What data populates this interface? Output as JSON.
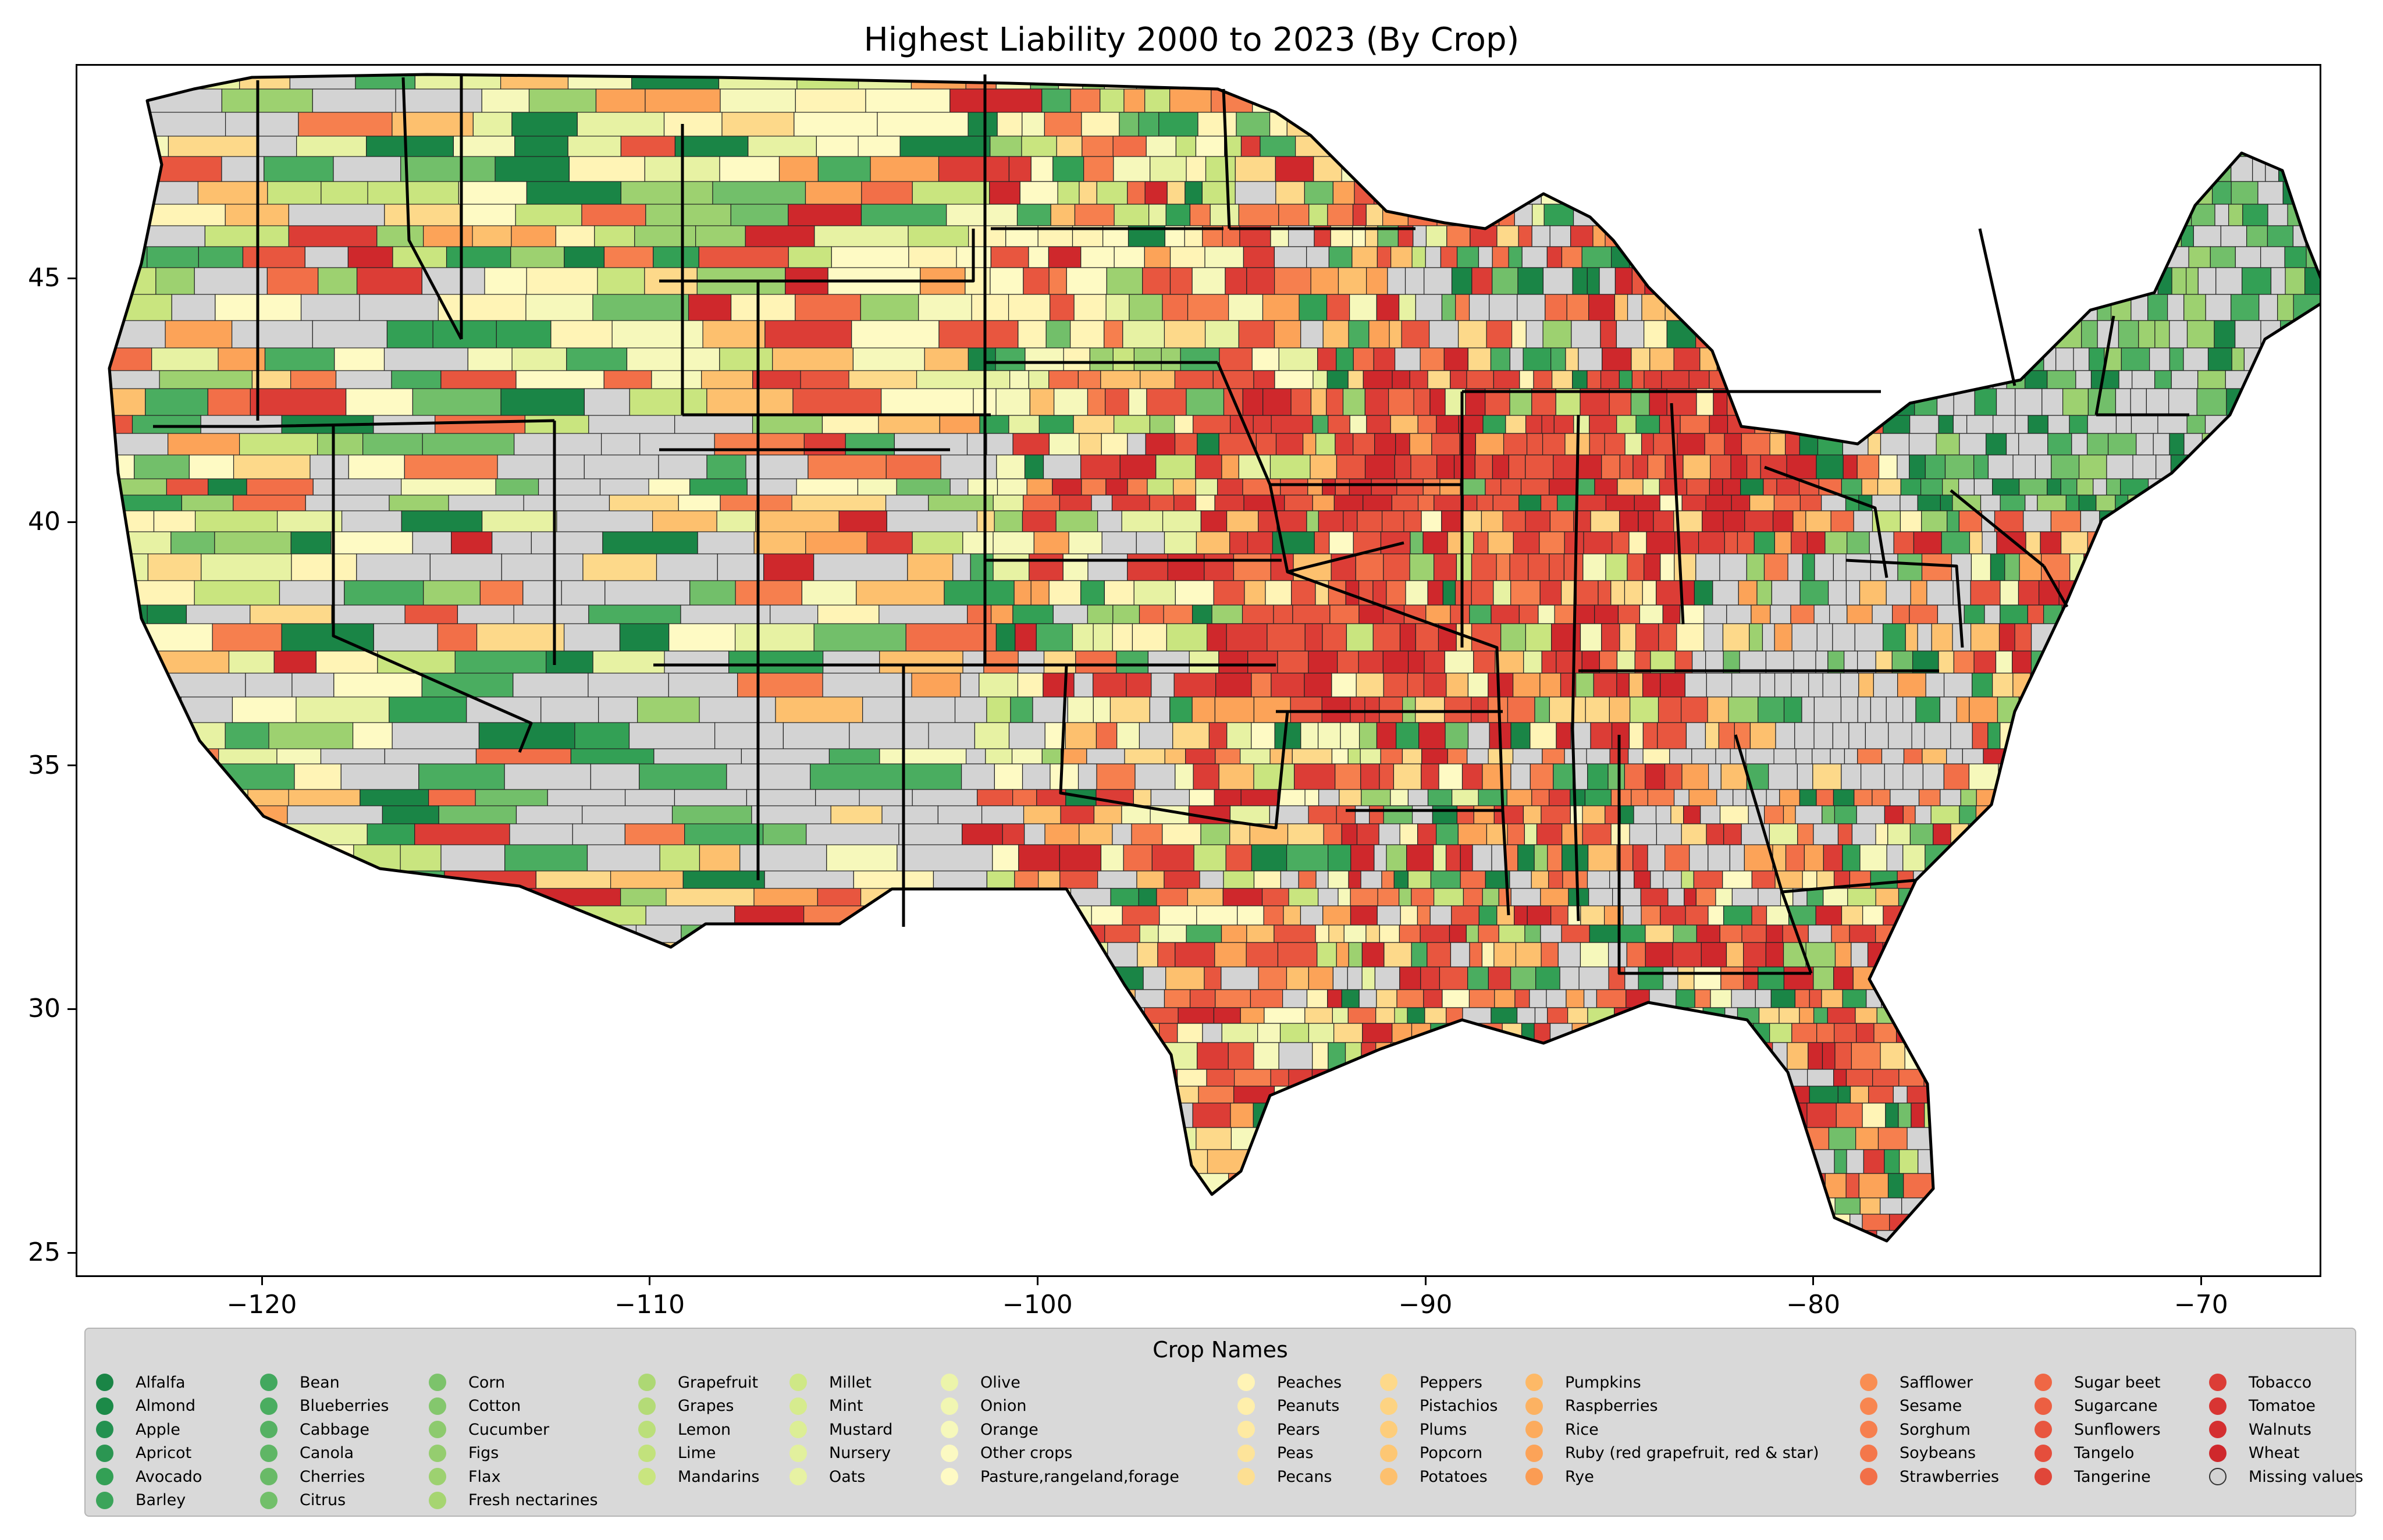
{
  "title": "Highest Liability 2000 to 2023 (By Crop)",
  "axes": {
    "x_ticks": [
      "−120",
      "−110",
      "−100",
      "−90",
      "−80",
      "−70"
    ],
    "x_values": [
      -120,
      -110,
      -100,
      -90,
      -80,
      -70
    ],
    "y_ticks": [
      "45",
      "40",
      "35",
      "30",
      "25"
    ],
    "y_values": [
      45,
      40,
      35,
      30,
      25
    ],
    "xlim": [
      -124.8,
      -66.9
    ],
    "ylim": [
      24.5,
      49.4
    ]
  },
  "legend": {
    "title": "Crop Names",
    "columns": [
      [
        {
          "label": "Alfalfa",
          "color": "#1a8546"
        },
        {
          "label": "Almond",
          "color": "#1c8a48"
        },
        {
          "label": "Apple",
          "color": "#239150"
        },
        {
          "label": "Apricot",
          "color": "#2b9652"
        },
        {
          "label": "Avocado",
          "color": "#33a055"
        },
        {
          "label": "Barley",
          "color": "#3ba45a"
        }
      ],
      [
        {
          "label": "Bean",
          "color": "#42a85e"
        },
        {
          "label": "Blueberries",
          "color": "#4aad60"
        },
        {
          "label": "Cabbage",
          "color": "#55b163"
        },
        {
          "label": "Canola",
          "color": "#5fb665"
        },
        {
          "label": "Cherries",
          "color": "#69ba67"
        },
        {
          "label": "Citrus",
          "color": "#72bf6a"
        }
      ],
      [
        {
          "label": "Corn",
          "color": "#7cc36b"
        },
        {
          "label": "Cotton",
          "color": "#84c76d"
        },
        {
          "label": "Cucumber",
          "color": "#8dca6e"
        },
        {
          "label": "Figs",
          "color": "#95cd6f"
        },
        {
          "label": "Flax",
          "color": "#9dd170"
        },
        {
          "label": "Fresh nectarines",
          "color": "#a6d571"
        }
      ],
      [
        {
          "label": "Grapefruit",
          "color": "#add874"
        },
        {
          "label": "Grapes",
          "color": "#b4db77"
        },
        {
          "label": "Lemon",
          "color": "#bbdf7a"
        },
        {
          "label": "Lime",
          "color": "#c2e27c"
        },
        {
          "label": "Mandarins",
          "color": "#c9e57f"
        }
      ],
      [
        {
          "label": "Millet",
          "color": "#cfe886"
        },
        {
          "label": "Mint",
          "color": "#d6eb8e"
        },
        {
          "label": "Mustard",
          "color": "#dcee95"
        },
        {
          "label": "Nursery",
          "color": "#e2f09d"
        },
        {
          "label": "Oats",
          "color": "#e7f2a3"
        }
      ],
      [
        {
          "label": "Olive",
          "color": "#ecf4aa"
        },
        {
          "label": "Onion",
          "color": "#f1f6b2"
        },
        {
          "label": "Orange",
          "color": "#f6f8bb"
        },
        {
          "label": "Other crops",
          "color": "#fbf9c2"
        },
        {
          "label": "Pasture,rangeland,forage",
          "color": "#fefac4"
        }
      ],
      [
        {
          "label": "Peaches",
          "color": "#fff4b6"
        },
        {
          "label": "Peanuts",
          "color": "#ffefab"
        },
        {
          "label": "Pears",
          "color": "#feeaa2"
        },
        {
          "label": "Peas",
          "color": "#fde49a"
        },
        {
          "label": "Pecans",
          "color": "#fddf92"
        }
      ],
      [
        {
          "label": "Peppers",
          "color": "#fdd98a"
        },
        {
          "label": "Pistachios",
          "color": "#fdd382"
        },
        {
          "label": "Plums",
          "color": "#fdcd7b"
        },
        {
          "label": "Popcorn",
          "color": "#fdc774"
        },
        {
          "label": "Potatoes",
          "color": "#fdc06e"
        }
      ],
      [
        {
          "label": "Pumpkins",
          "color": "#fdb967"
        },
        {
          "label": "Raspberries",
          "color": "#fcb262"
        },
        {
          "label": "Rice",
          "color": "#fcab5d"
        },
        {
          "label": "Ruby (red grapefruit, red & star)",
          "color": "#fca358"
        },
        {
          "label": "Rye",
          "color": "#fb9c53"
        }
      ],
      [
        {
          "label": "Safflower",
          "color": "#f98e52"
        },
        {
          "label": "Sesame",
          "color": "#f88650"
        },
        {
          "label": "Sorghum",
          "color": "#f67f4e"
        },
        {
          "label": "Soybeans",
          "color": "#f4774b"
        },
        {
          "label": "Strawberries",
          "color": "#f26f48"
        }
      ],
      [
        {
          "label": "Sugar beet",
          "color": "#ef6745"
        },
        {
          "label": "Sugarcane",
          "color": "#ec5f42"
        },
        {
          "label": "Sunflowers",
          "color": "#e8563f"
        },
        {
          "label": "Tangelo",
          "color": "#e54e3c"
        },
        {
          "label": "Tangerine",
          "color": "#e04639"
        }
      ],
      [
        {
          "label": "Tobacco",
          "color": "#dc3d36"
        },
        {
          "label": "Tomatoe",
          "color": "#d83533"
        },
        {
          "label": "Walnuts",
          "color": "#d42f30"
        },
        {
          "label": "Wheat",
          "color": "#cf282c"
        },
        {
          "label": "Missing values",
          "color": "#d3d3d3"
        }
      ]
    ]
  },
  "palette": {
    "missing": "#d3d3d3",
    "greens": [
      "#1a8546",
      "#33a055",
      "#4aad60",
      "#72bf6a",
      "#9dd170"
    ],
    "yellows": [
      "#c9e57f",
      "#e7f2a3",
      "#f6f8bb",
      "#fefac4",
      "#fff4b6"
    ],
    "oranges": [
      "#fdd98a",
      "#fdc06e",
      "#fca358",
      "#f67f4e",
      "#f26f48"
    ],
    "reds": [
      "#e8563f",
      "#dc3d36",
      "#cf282c"
    ]
  }
}
